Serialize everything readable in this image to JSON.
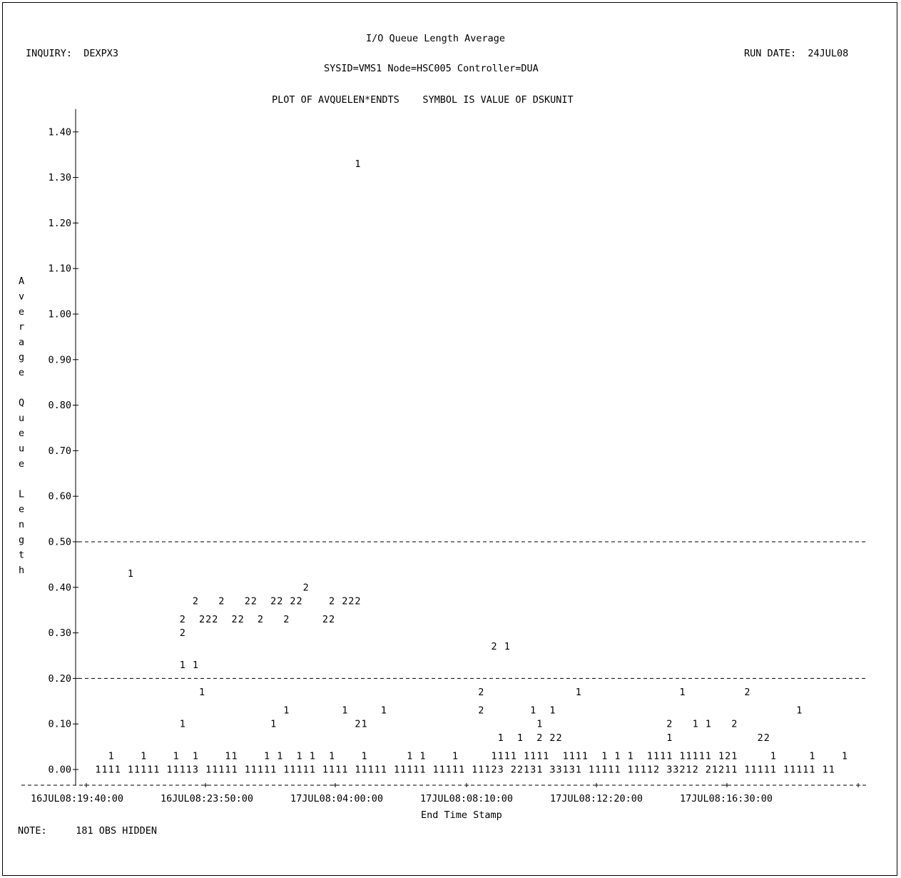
{
  "header": {
    "title": "I/O Queue Length Average",
    "inquiry": "INQUIRY:  DEXPX3",
    "run_date": "RUN DATE:  24JUL08",
    "subtitle": "SYSID=VMS1 Node=HSC005 Controller=DUA",
    "plot_spec": "PLOT OF AVQUELEN*ENDTS    SYMBOL IS VALUE OF DSKUNIT"
  },
  "footer": {
    "note": "NOTE:     181 OBS HIDDEN"
  },
  "chart_data": {
    "type": "scatter",
    "title": "I/O Queue Length Average",
    "subtitle": "SYSID=VMS1 Node=HSC005 Controller=DUA",
    "xlabel": "End Time Stamp",
    "ylabel": "Average Queue Length",
    "ylim": [
      0.0,
      1.4
    ],
    "yticks": [
      "0.00",
      "0.10",
      "0.20",
      "0.30",
      "0.40",
      "0.50",
      "0.60",
      "0.70",
      "0.80",
      "0.90",
      "1.00",
      "1.10",
      "1.20",
      "1.30",
      "1.40"
    ],
    "xticks": [
      "16JUL08:19:40:00",
      "16JUL08:23:50:00",
      "17JUL08:04:00:00",
      "17JUL08:08:10:00",
      "17JUL08:12:20:00",
      "17JUL08:16:30:00"
    ],
    "reference_lines": [
      0.2,
      0.5
    ],
    "grid": false,
    "legend": "SYMBOL IS VALUE OF DSKUNIT",
    "symbol_rows": [
      {
        "y": 1.33,
        "text": "                                            1"
      },
      {
        "y": 0.43,
        "text": "         1"
      },
      {
        "y": 0.4,
        "text": "                                    2"
      },
      {
        "y": 0.37,
        "text": "                   2   2   22  22 22    2 222"
      },
      {
        "y": 0.33,
        "text": "                 2  222  22  2   2     22"
      },
      {
        "y": 0.3,
        "text": "                 2"
      },
      {
        "y": 0.27,
        "text": "                                                                 2 1"
      },
      {
        "y": 0.23,
        "text": "                 1 1"
      },
      {
        "y": 0.17,
        "text": "                    1                                          2              1               1         2"
      },
      {
        "y": 0.13,
        "text": "                                 1        1     1              2       1  1                                     1"
      },
      {
        "y": 0.1,
        "text": "                 1             1            21"
      },
      {
        "y": 0.1,
        "text": "                                                                        1                   2   1 1   2"
      },
      {
        "y": 0.07,
        "text": "                                                                  1  1  2 22                1             22"
      },
      {
        "y": 0.03,
        "text": "      1    1    1  1    11    1 1  1 1  1    1      1 1    1     1111 1111  1111  1 1 1  1111 11111 121     1     1    1"
      },
      {
        "y": 0.0,
        "text": "    1111 11111 11113 11111 11111 11111 1111 11111 11111 11111 11123 22131 33131 11111 11112 33212 21211 11111 11111 11"
      }
    ]
  }
}
